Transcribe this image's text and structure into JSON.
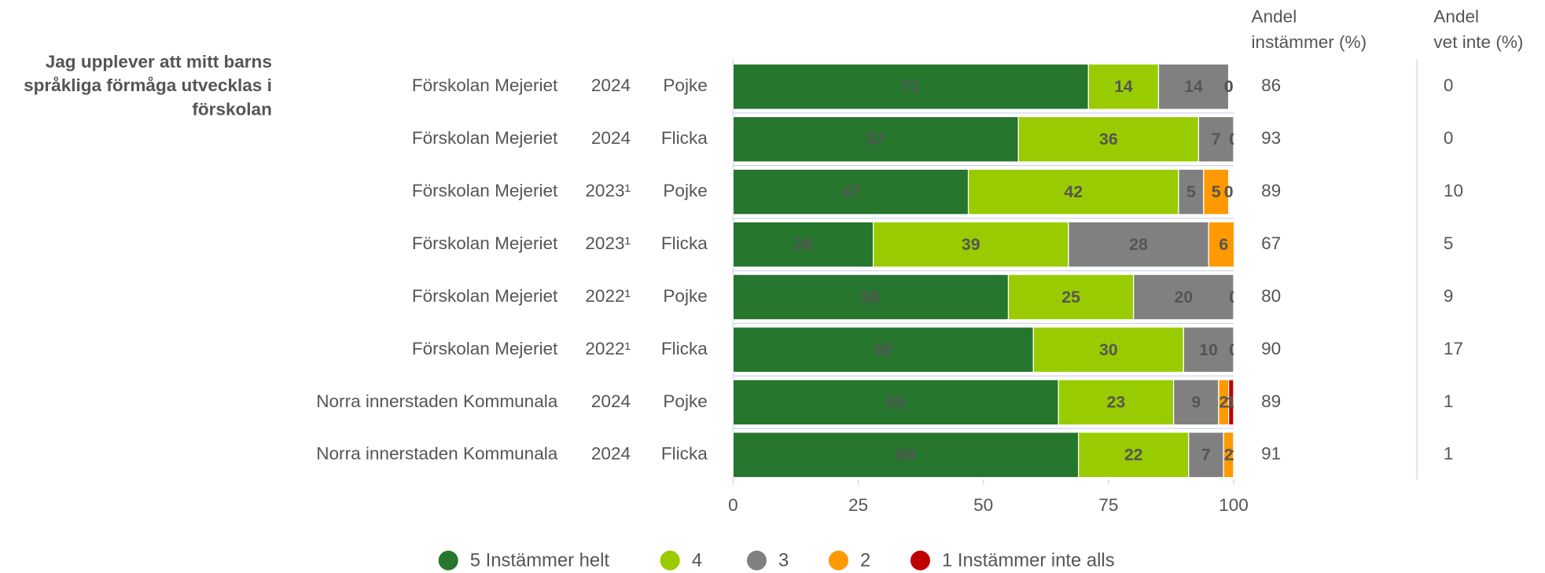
{
  "chart_data": {
    "type": "stacked_bar_horizontal",
    "title_lines": [
      "Jag upplever att mitt barns",
      "språkliga förmåga utvecklas i",
      "förskolan"
    ],
    "rows": [
      {
        "unit": "Förskolan Mejeriet",
        "year": "2024",
        "gender": "Pojke"
      },
      {
        "unit": "Förskolan Mejeriet",
        "year": "2024",
        "gender": "Flicka"
      },
      {
        "unit": "Förskolan Mejeriet",
        "year": "2023¹",
        "gender": "Pojke"
      },
      {
        "unit": "Förskolan Mejeriet",
        "year": "2023¹",
        "gender": "Flicka"
      },
      {
        "unit": "Förskolan Mejeriet",
        "year": "2022¹",
        "gender": "Pojke"
      },
      {
        "unit": "Förskolan Mejeriet",
        "year": "2022¹",
        "gender": "Flicka"
      },
      {
        "unit": "Norra innerstaden Kommunala",
        "year": "2024",
        "gender": "Pojke"
      },
      {
        "unit": "Norra innerstaden Kommunala",
        "year": "2024",
        "gender": "Flicka"
      }
    ],
    "series": [
      {
        "name": "5 Instämmer helt",
        "color": "#26762e",
        "values": [
          71,
          57,
          47,
          28,
          55,
          60,
          65,
          69
        ]
      },
      {
        "name": "4",
        "color": "#99cc00",
        "values": [
          14,
          36,
          42,
          39,
          25,
          30,
          23,
          22
        ]
      },
      {
        "name": "3",
        "color": "#808080",
        "values": [
          14,
          7,
          5,
          28,
          20,
          10,
          9,
          7
        ]
      },
      {
        "name": "2",
        "color": "#ff9900",
        "values": [
          0,
          0,
          5,
          6,
          0,
          0,
          2,
          2
        ]
      },
      {
        "name": "1 Instämmer inte alls",
        "color": "#c00000",
        "values": [
          0,
          0,
          0,
          0,
          0,
          0,
          1,
          1
        ]
      }
    ],
    "xlim": [
      0,
      100
    ],
    "xticks": [
      0,
      25,
      50,
      75,
      100
    ],
    "columns": [
      {
        "header_lines": [
          "Andel",
          "instämmer (%)"
        ],
        "values": [
          86,
          93,
          89,
          67,
          80,
          90,
          89,
          91
        ]
      },
      {
        "header_lines": [
          "Andel",
          "vet inte (%)"
        ],
        "values": [
          0,
          0,
          10,
          5,
          9,
          17,
          1,
          1
        ]
      }
    ]
  }
}
